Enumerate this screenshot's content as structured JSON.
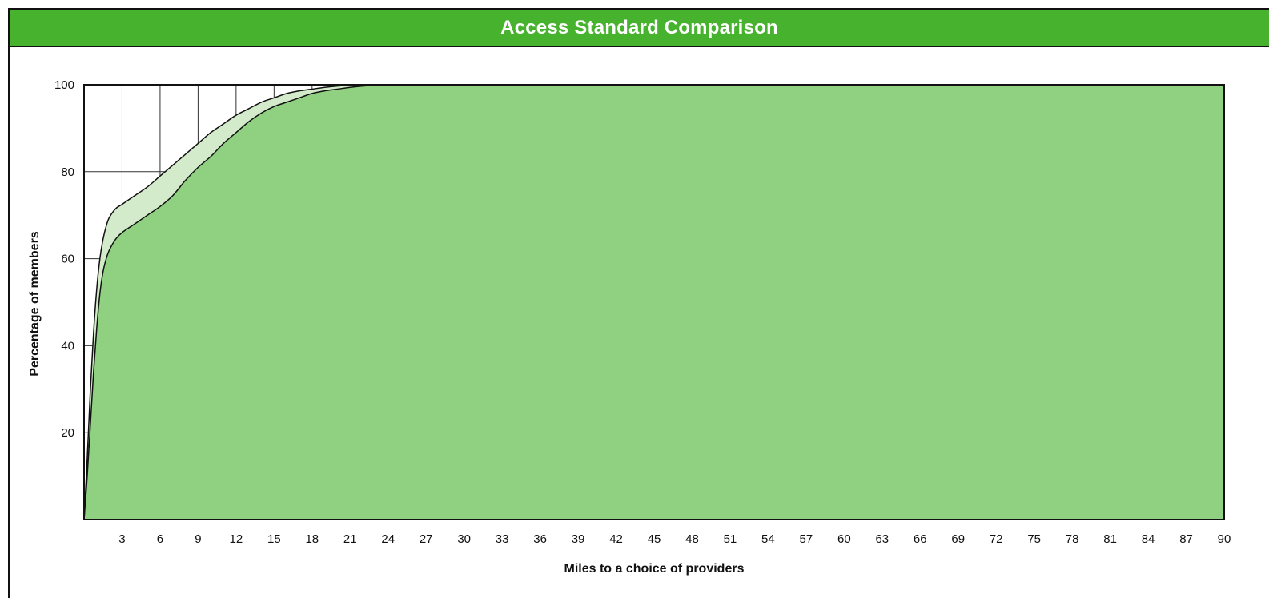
{
  "chart_data": {
    "type": "area",
    "title": "Access Standard Comparison",
    "xlabel": "Miles to a choice of providers",
    "ylabel": "Percentage of members",
    "xlim": [
      0,
      90
    ],
    "ylim": [
      0,
      100
    ],
    "x_ticks": [
      3,
      6,
      9,
      12,
      15,
      18,
      21,
      24,
      27,
      30,
      33,
      36,
      39,
      42,
      45,
      48,
      51,
      54,
      57,
      60,
      63,
      66,
      69,
      72,
      75,
      78,
      81,
      84,
      87,
      90
    ],
    "y_ticks": [
      20,
      40,
      60,
      80,
      100
    ],
    "grid": true,
    "colors": {
      "title_bar": "#47b22e",
      "series_lower_fill": "#8fd081",
      "series_upper_fill": "#d3ebca",
      "line": "#111111",
      "grid": "#333333"
    },
    "series": [
      {
        "points": [
          [
            0,
            0
          ],
          [
            0.25,
            10
          ],
          [
            0.5,
            22
          ],
          [
            0.75,
            34
          ],
          [
            1,
            44
          ],
          [
            1.25,
            52
          ],
          [
            1.5,
            57
          ],
          [
            1.75,
            60
          ],
          [
            2,
            62
          ],
          [
            2.5,
            64.5
          ],
          [
            3,
            66
          ],
          [
            4,
            68
          ],
          [
            5,
            70
          ],
          [
            6,
            72
          ],
          [
            7,
            74.5
          ],
          [
            8,
            78
          ],
          [
            9,
            81
          ],
          [
            10,
            83.5
          ],
          [
            11,
            86.5
          ],
          [
            12,
            89
          ],
          [
            13,
            91.5
          ],
          [
            14,
            93.5
          ],
          [
            15,
            95
          ],
          [
            16,
            96
          ],
          [
            17,
            97
          ],
          [
            18,
            98
          ],
          [
            19,
            98.6
          ],
          [
            20,
            99
          ],
          [
            21,
            99.4
          ],
          [
            22,
            99.7
          ],
          [
            23,
            99.9
          ],
          [
            24,
            100
          ],
          [
            90,
            100
          ]
        ]
      },
      {
        "points": [
          [
            0,
            0
          ],
          [
            0.25,
            14
          ],
          [
            0.5,
            30
          ],
          [
            0.75,
            43
          ],
          [
            1,
            53
          ],
          [
            1.25,
            60
          ],
          [
            1.5,
            64.5
          ],
          [
            1.75,
            67.5
          ],
          [
            2,
            69.5
          ],
          [
            2.5,
            71.5
          ],
          [
            3,
            72.5
          ],
          [
            4,
            74.5
          ],
          [
            5,
            76.5
          ],
          [
            6,
            79
          ],
          [
            7,
            81.5
          ],
          [
            8,
            84
          ],
          [
            9,
            86.5
          ],
          [
            10,
            89
          ],
          [
            11,
            91
          ],
          [
            12,
            93
          ],
          [
            13,
            94.5
          ],
          [
            14,
            96
          ],
          [
            15,
            97
          ],
          [
            16,
            98
          ],
          [
            17,
            98.6
          ],
          [
            18,
            99
          ],
          [
            19,
            99.4
          ],
          [
            20,
            99.7
          ],
          [
            21,
            99.9
          ],
          [
            22,
            100
          ],
          [
            90,
            100
          ]
        ]
      }
    ]
  }
}
